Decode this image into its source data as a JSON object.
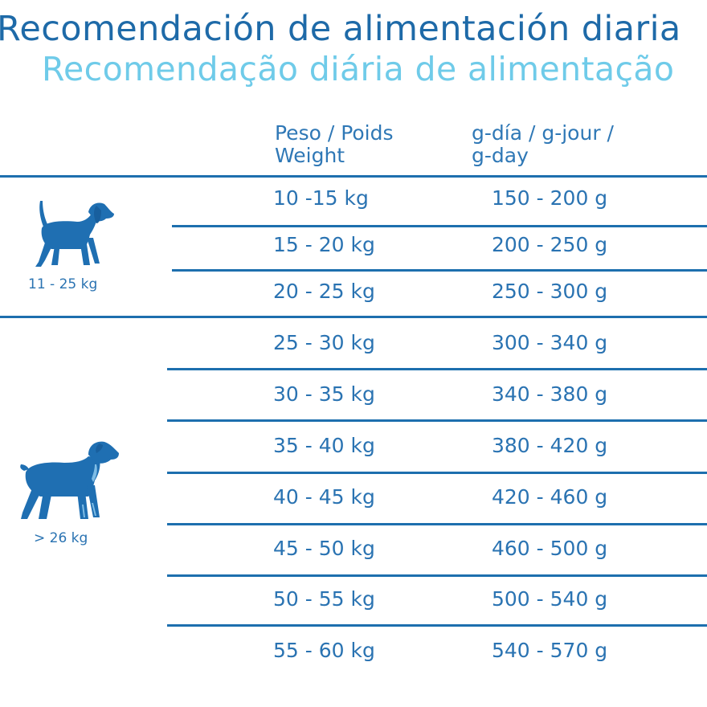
{
  "title": {
    "es": "Recomendación de alimentación diaria",
    "pt": "Recomendação diária de alimentação"
  },
  "header": {
    "weight_line1": "Peso / Poids",
    "weight_line2": "Weight",
    "dose_line1": "g-día /  g-jour /",
    "dose_line2": "g-day"
  },
  "groups": [
    {
      "label": "11 - 25 kg",
      "icon": "beagle-dog-icon"
    },
    {
      "label": "> 26 kg",
      "icon": "rottweiler-dog-icon"
    }
  ],
  "rows": [
    {
      "weight": "10 -15 kg",
      "dose": "150 - 200 g"
    },
    {
      "weight": "15 - 20 kg",
      "dose": "200 - 250 g"
    },
    {
      "weight": "20 - 25 kg",
      "dose": "250 - 300 g"
    },
    {
      "weight": "25 - 30 kg",
      "dose": "300 - 340 g"
    },
    {
      "weight": "30 - 35 kg",
      "dose": "340 - 380 g"
    },
    {
      "weight": "35 - 40 kg",
      "dose": "380 - 420 g"
    },
    {
      "weight": "40 - 45 kg",
      "dose": "420 - 460 g"
    },
    {
      "weight": "45 - 50 kg",
      "dose": "460 - 500 g"
    },
    {
      "weight": "50 - 55 kg",
      "dose": "500 - 540 g"
    },
    {
      "weight": "55 - 60 kg",
      "dose": "540 - 570 g"
    }
  ],
  "colors": {
    "title_es": "#1e6aa8",
    "title_pt": "#6fcbe9",
    "table_text": "#2a73b2",
    "rules": "#1d6fae",
    "dog_fill": "#1f6fb2"
  }
}
